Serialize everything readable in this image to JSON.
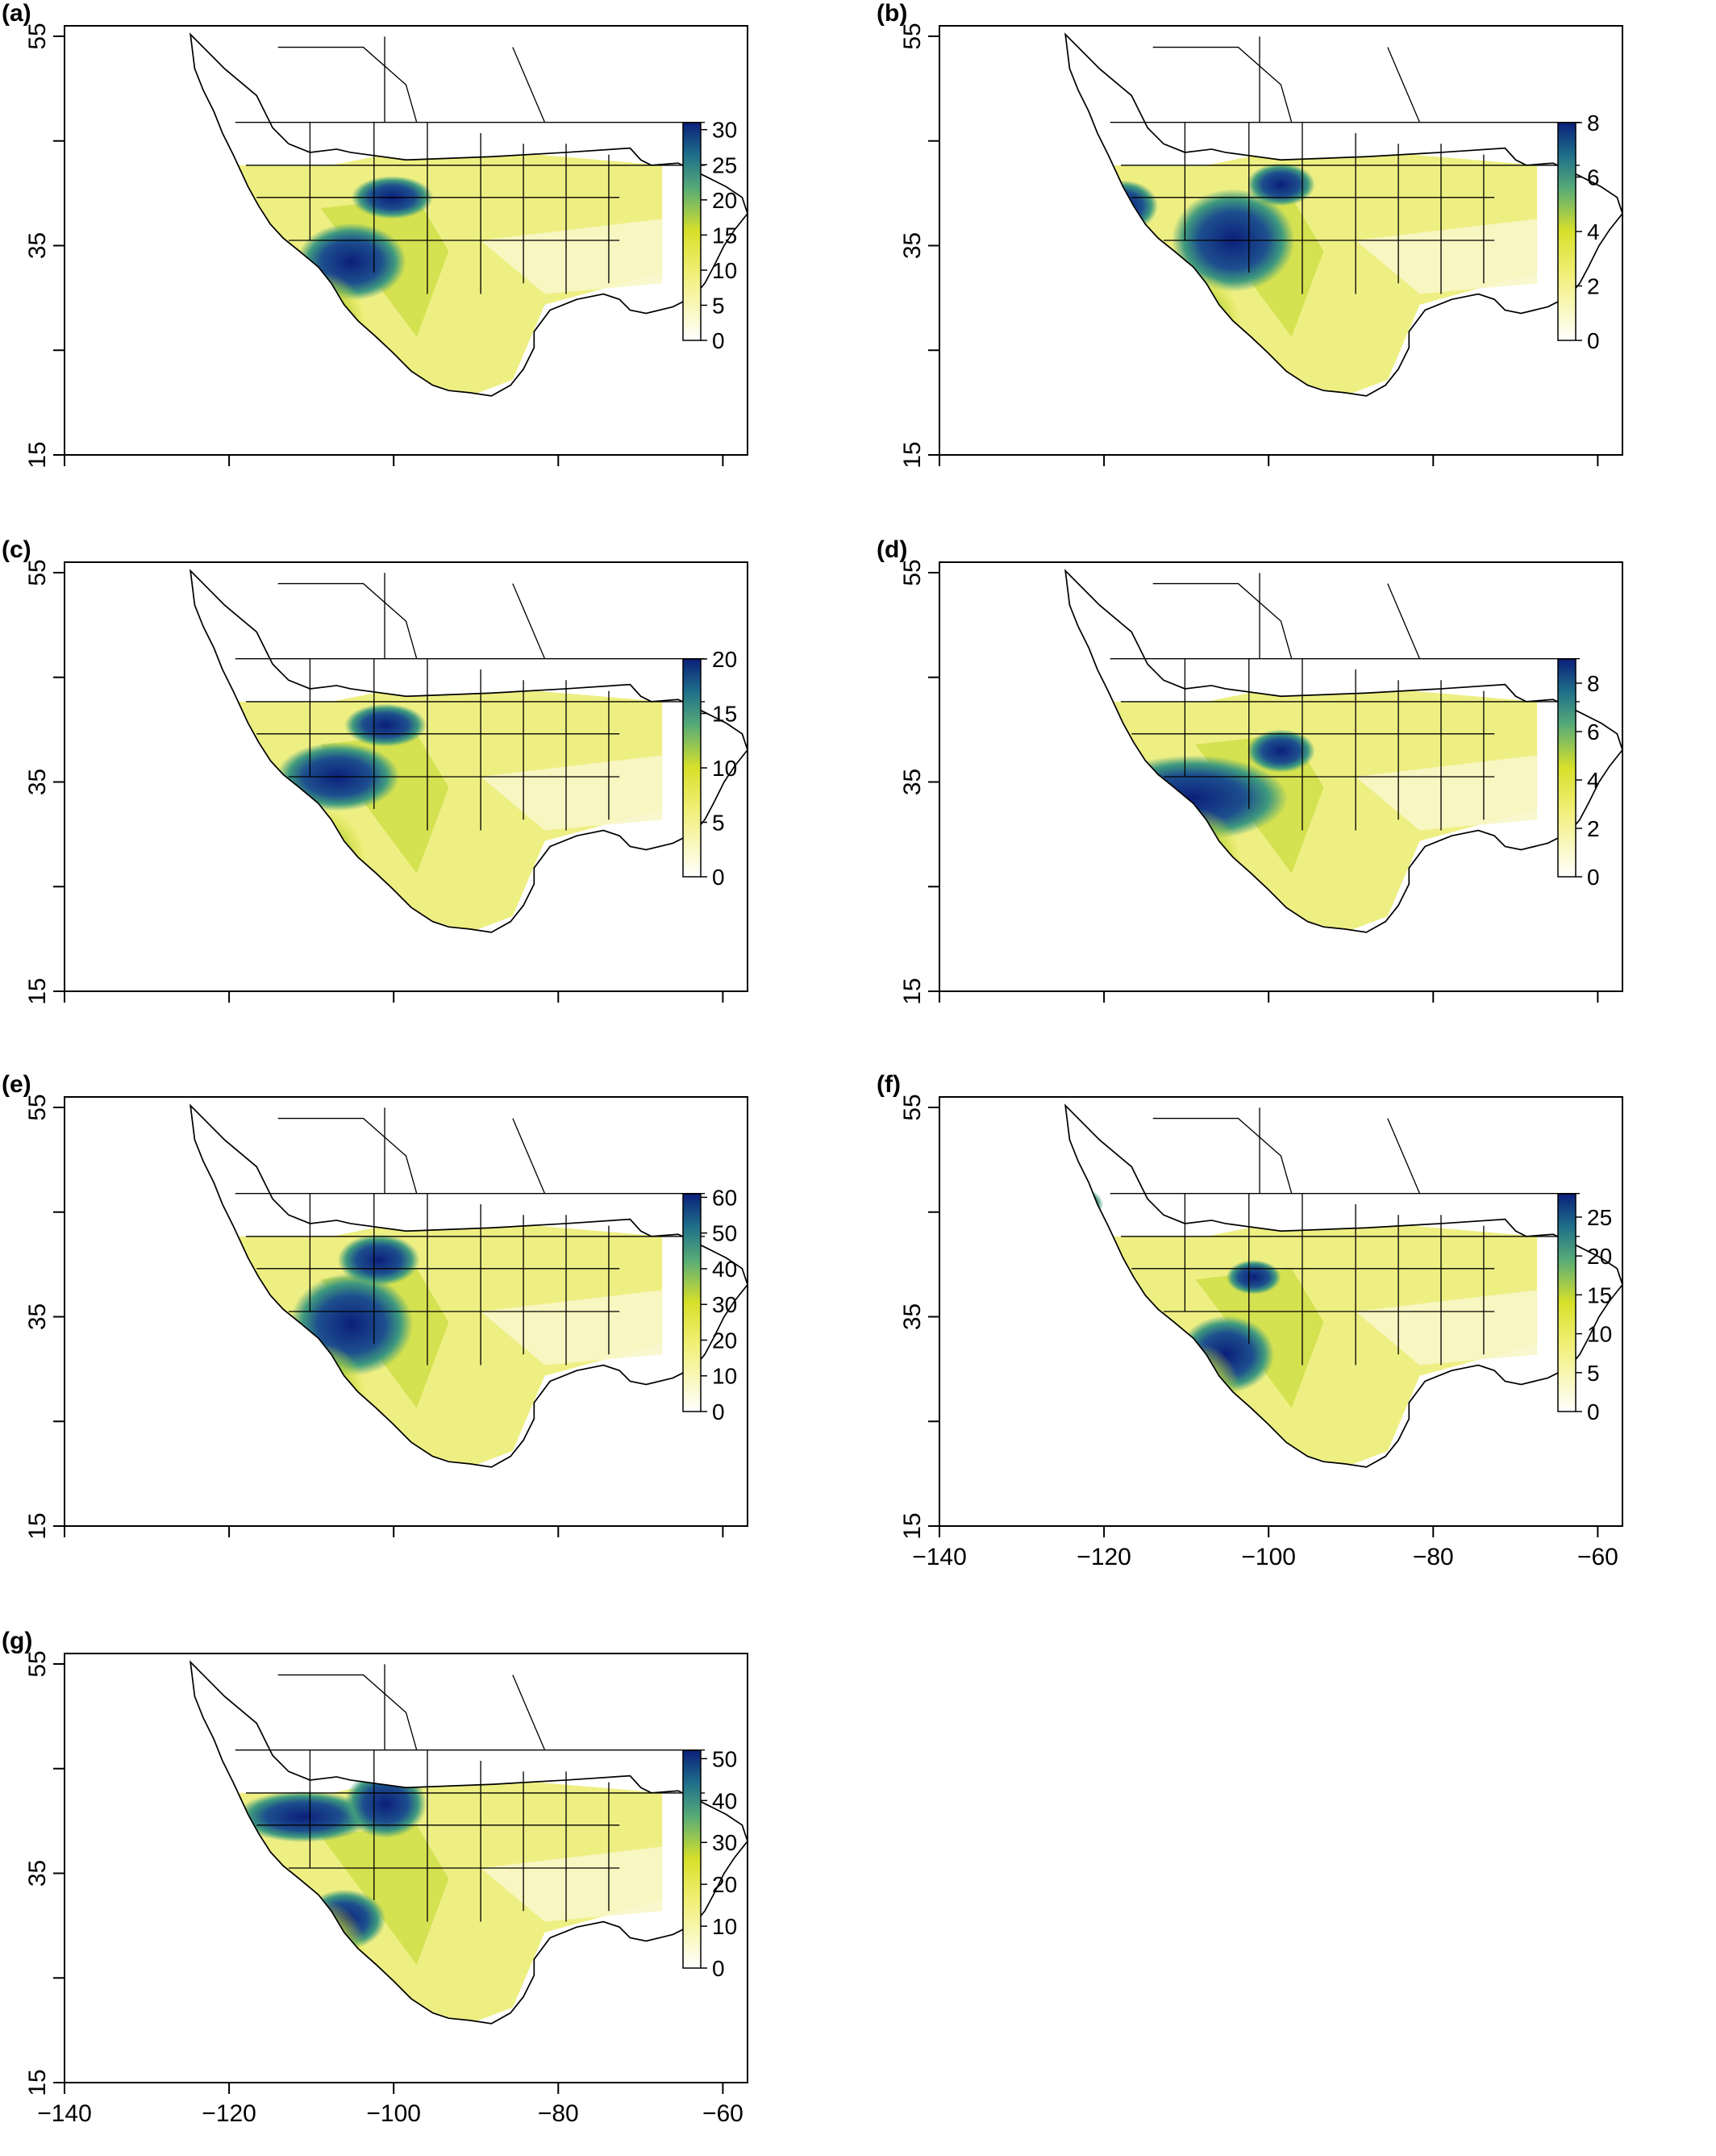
{
  "figure": {
    "x_axis": {
      "ticks": [
        -140,
        -120,
        -100,
        -80,
        -60
      ],
      "range": [
        -140,
        -57
      ]
    },
    "y_axis": {
      "ticks": [
        15,
        25,
        35,
        45,
        55
      ],
      "tick_labels": [
        "15",
        "",
        "35",
        "",
        "55"
      ],
      "range": [
        15,
        56
      ]
    },
    "colors": {
      "low": "#ffffff",
      "mid": "#e6e62a",
      "teal": "#4aa67a",
      "high": "#0b1f7a"
    }
  },
  "panels": [
    {
      "label": "(a)",
      "colorbar": {
        "max": 31,
        "ticks": [
          "0",
          "5",
          "10",
          "15",
          "20",
          "25",
          "30"
        ],
        "tick_values": [
          0,
          5,
          10,
          15,
          20,
          25,
          30
        ]
      },
      "show_x_labels": false
    },
    {
      "label": "(b)",
      "colorbar": {
        "max": 8,
        "ticks": [
          "0",
          "2",
          "4",
          "6",
          "8"
        ],
        "tick_values": [
          0,
          2,
          4,
          6,
          8
        ]
      },
      "show_x_labels": false
    },
    {
      "label": "(c)",
      "colorbar": {
        "max": 20,
        "ticks": [
          "0",
          "5",
          "10",
          "15",
          "20"
        ],
        "tick_values": [
          0,
          5,
          10,
          15,
          20
        ]
      },
      "show_x_labels": false
    },
    {
      "label": "(d)",
      "colorbar": {
        "max": 9,
        "ticks": [
          "0",
          "2",
          "4",
          "6",
          "8"
        ],
        "tick_values": [
          0,
          2,
          4,
          6,
          8
        ]
      },
      "show_x_labels": false
    },
    {
      "label": "(e)",
      "colorbar": {
        "max": 61,
        "ticks": [
          "0",
          "10",
          "20",
          "30",
          "40",
          "50",
          "60"
        ],
        "tick_values": [
          0,
          10,
          20,
          30,
          40,
          50,
          60
        ]
      },
      "show_x_labels": false
    },
    {
      "label": "(f)",
      "colorbar": {
        "max": 28,
        "ticks": [
          "0",
          "5",
          "10",
          "15",
          "20",
          "25"
        ],
        "tick_values": [
          0,
          5,
          10,
          15,
          20,
          25
        ]
      },
      "show_x_labels": true
    },
    {
      "label": "(g)",
      "colorbar": {
        "max": 52,
        "ticks": [
          "0",
          "10",
          "20",
          "30",
          "40",
          "50"
        ],
        "tick_values": [
          0,
          10,
          20,
          30,
          40,
          50
        ]
      },
      "show_x_labels": true
    }
  ],
  "x_tick_labels": [
    "−140",
    "−120",
    "−100",
    "−80",
    "−60"
  ]
}
